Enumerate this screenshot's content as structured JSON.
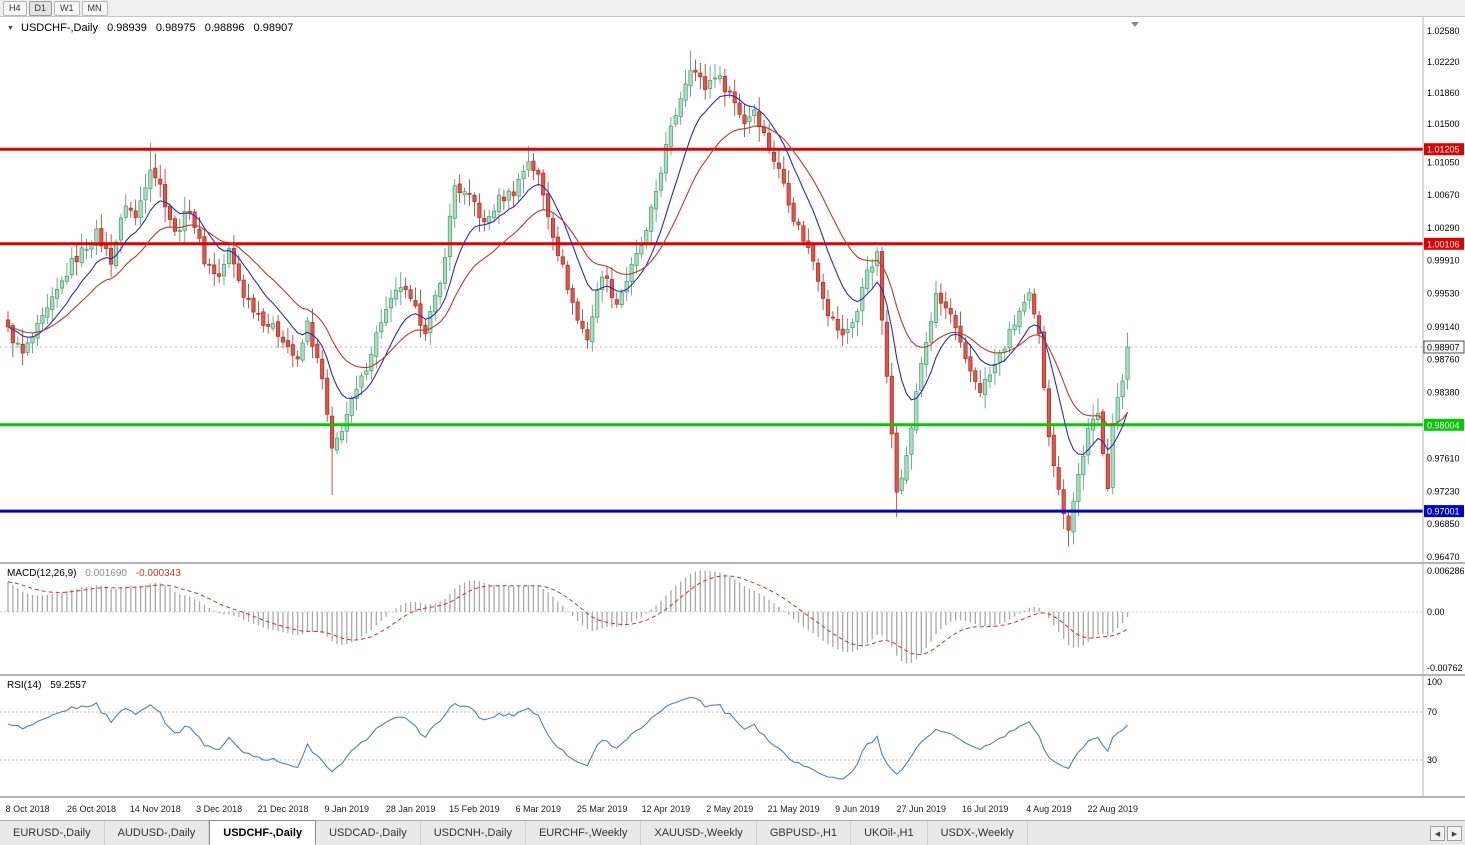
{
  "toolbar": {
    "timeframes": [
      "H4",
      "D1",
      "W1",
      "MN"
    ],
    "active_timeframe": "D1"
  },
  "icons": {
    "dropdown": "▼",
    "scroll_left": "◀",
    "scroll_right": "▶",
    "shift_marker": "▼"
  },
  "chart": {
    "symbol": "USDCHF-,Daily",
    "ohlc": {
      "open": "0.98939",
      "high": "0.98975",
      "low": "0.98896",
      "close": "0.98907"
    },
    "y_axis_labels": [
      "1.02580",
      "1.02220",
      "1.01860",
      "1.01500",
      "1.01050",
      "1.00670",
      "1.00290",
      "0.99910",
      "0.99530",
      "0.99140",
      "0.98760",
      "0.98380",
      "0.97610",
      "0.97230",
      "0.96850",
      "0.96470"
    ],
    "hlines": [
      {
        "price": 1.01205,
        "label": "1.01205",
        "color": "#e00000"
      },
      {
        "price": 1.00106,
        "label": "1.00106",
        "color": "#e00000"
      },
      {
        "price": 0.98004,
        "label": "0.98004",
        "color": "#00cc00"
      },
      {
        "price": 0.97001,
        "label": "0.97001",
        "color": "#0000cc"
      }
    ],
    "current_price": {
      "value": 0.98907,
      "label": "0.98907"
    },
    "colors": {
      "up_fill": "#a9ddbd",
      "up_stroke": "#3f9e6b",
      "down_fill": "#e25449",
      "down_stroke": "#ad2c20",
      "ma_fast": "#2b2bc0",
      "ma_slow": "#c03a2b",
      "hist": "#a9a9a9",
      "signal": "#c0392b",
      "rsi_line": "#4f81bd",
      "current_line": "#b8b8b8"
    }
  },
  "macd": {
    "label": "MACD(12,26,9)",
    "value1": "0.001690",
    "value2": "-0.000343",
    "axis_labels": {
      "top": "0.006286",
      "zero": "0.00",
      "bottom": "-0.00762"
    },
    "params": [
      12,
      26,
      9
    ]
  },
  "rsi": {
    "label": "RSI(14)",
    "value": "59.2557",
    "period": 14,
    "axis_top": "100",
    "levels": [
      70,
      30
    ]
  },
  "tabs": {
    "items": [
      "EURUSD-,Daily",
      "AUDUSD-,Daily",
      "USDCHF-,Daily",
      "USDCAD-,Daily",
      "USDCNH-,Daily",
      "EURCHF-,Weekly",
      "XAUUSD-,Weekly",
      "GBPUSD-,H1",
      "UKOil-,H1",
      "USDX-,Weekly"
    ],
    "active_index": 2
  },
  "chart_data": {
    "type": "candlestick",
    "symbol": "USDCHF",
    "timeframe": "Daily",
    "title": "USDCHF-,Daily",
    "ylim": [
      0.9641,
      1.0274
    ],
    "candle_count": 229,
    "price_anchors": [
      [
        0,
        0.991
      ],
      [
        3,
        0.9882
      ],
      [
        8,
        0.9932
      ],
      [
        13,
        0.9988
      ],
      [
        18,
        1.0022
      ],
      [
        21,
        0.9992
      ],
      [
        24,
        1.0058
      ],
      [
        26,
        1.004
      ],
      [
        29,
        1.0102
      ],
      [
        31,
        1.0078
      ],
      [
        34,
        1.0022
      ],
      [
        37,
        1.0052
      ],
      [
        40,
        0.9992
      ],
      [
        43,
        0.9972
      ],
      [
        45,
        1.0002
      ],
      [
        48,
        0.9952
      ],
      [
        52,
        0.9922
      ],
      [
        56,
        0.9902
      ],
      [
        59,
        0.9872
      ],
      [
        61,
        0.9918
      ],
      [
        64,
        0.9852
      ],
      [
        66,
        0.9768
      ],
      [
        69,
        0.9812
      ],
      [
        72,
        0.9852
      ],
      [
        76,
        0.9922
      ],
      [
        80,
        0.9962
      ],
      [
        82,
        0.9942
      ],
      [
        85,
        0.9912
      ],
      [
        88,
        0.9962
      ],
      [
        91,
        1.0078
      ],
      [
        95,
        1.0058
      ],
      [
        97,
        1.0032
      ],
      [
        100,
        1.0062
      ],
      [
        103,
        1.0072
      ],
      [
        106,
        1.0108
      ],
      [
        108,
        1.0088
      ],
      [
        112,
        1.0002
      ],
      [
        116,
        0.9922
      ],
      [
        118,
        0.9902
      ],
      [
        121,
        0.9978
      ],
      [
        124,
        0.9942
      ],
      [
        127,
        0.9982
      ],
      [
        130,
        1.0022
      ],
      [
        134,
        1.0122
      ],
      [
        137,
        1.0182
      ],
      [
        139,
        1.0218
      ],
      [
        142,
        1.0192
      ],
      [
        144,
        1.0208
      ],
      [
        147,
        1.0186
      ],
      [
        150,
        1.0152
      ],
      [
        152,
        1.0168
      ],
      [
        155,
        1.0122
      ],
      [
        158,
        1.0082
      ],
      [
        160,
        1.0042
      ],
      [
        164,
        0.9992
      ],
      [
        167,
        0.9932
      ],
      [
        170,
        0.9902
      ],
      [
        173,
        0.9932
      ],
      [
        175,
        0.9982
      ],
      [
        177,
        0.9996
      ],
      [
        179,
        0.9852
      ],
      [
        181,
        0.9728
      ],
      [
        183,
        0.9762
      ],
      [
        186,
        0.9872
      ],
      [
        189,
        0.9948
      ],
      [
        192,
        0.9928
      ],
      [
        195,
        0.9872
      ],
      [
        198,
        0.9842
      ],
      [
        200,
        0.9858
      ],
      [
        203,
        0.9892
      ],
      [
        206,
        0.9932
      ],
      [
        208,
        0.9948
      ],
      [
        210,
        0.9902
      ],
      [
        212,
        0.9792
      ],
      [
        214,
        0.9722
      ],
      [
        216,
        0.9682
      ],
      [
        218,
        0.9742
      ],
      [
        220,
        0.9792
      ],
      [
        222,
        0.9812
      ],
      [
        223,
        0.9772
      ],
      [
        224,
        0.9732
      ],
      [
        225,
        0.9802
      ],
      [
        227,
        0.9852
      ],
      [
        228,
        0.98907
      ]
    ],
    "spikes": [
      {
        "i": 29,
        "high": 1.0128
      },
      {
        "i": 66,
        "low": 0.9719
      },
      {
        "i": 106,
        "high": 1.0124
      },
      {
        "i": 139,
        "high": 1.0235
      },
      {
        "i": 181,
        "low": 0.9693
      },
      {
        "i": 216,
        "low": 0.9659
      }
    ],
    "x_axis_dates": [
      {
        "label": "8 Oct 2018",
        "i": 4
      },
      {
        "label": "26 Oct 2018",
        "i": 17
      },
      {
        "label": "14 Nov 2018",
        "i": 30
      },
      {
        "label": "3 Dec 2018",
        "i": 43
      },
      {
        "label": "21 Dec 2018",
        "i": 56
      },
      {
        "label": "9 Jan 2019",
        "i": 69
      },
      {
        "label": "28 Jan 2019",
        "i": 82
      },
      {
        "label": "15 Feb 2019",
        "i": 95
      },
      {
        "label": "6 Mar 2019",
        "i": 108
      },
      {
        "label": "25 Mar 2019",
        "i": 121
      },
      {
        "label": "12 Apr 2019",
        "i": 134
      },
      {
        "label": "2 May 2019",
        "i": 147
      },
      {
        "label": "21 May 2019",
        "i": 160
      },
      {
        "label": "9 Jun 2019",
        "i": 173
      },
      {
        "label": "27 Jun 2019",
        "i": 186
      },
      {
        "label": "16 Jul 2019",
        "i": 199
      },
      {
        "label": "4 Aug 2019",
        "i": 212
      },
      {
        "label": "22 Aug 2019",
        "i": 225
      }
    ],
    "indicators": [
      {
        "name": "MACD",
        "params": [
          12,
          26,
          9
        ],
        "current": [
          0.00169,
          -0.000343
        ],
        "range": [
          -0.00762,
          0.006286
        ]
      },
      {
        "name": "RSI",
        "params": [
          14
        ],
        "current": 59.2557,
        "levels": [
          70,
          30
        ]
      },
      {
        "name": "MA-fast",
        "style": "blue-line"
      },
      {
        "name": "MA-slow",
        "style": "red-line"
      }
    ]
  }
}
